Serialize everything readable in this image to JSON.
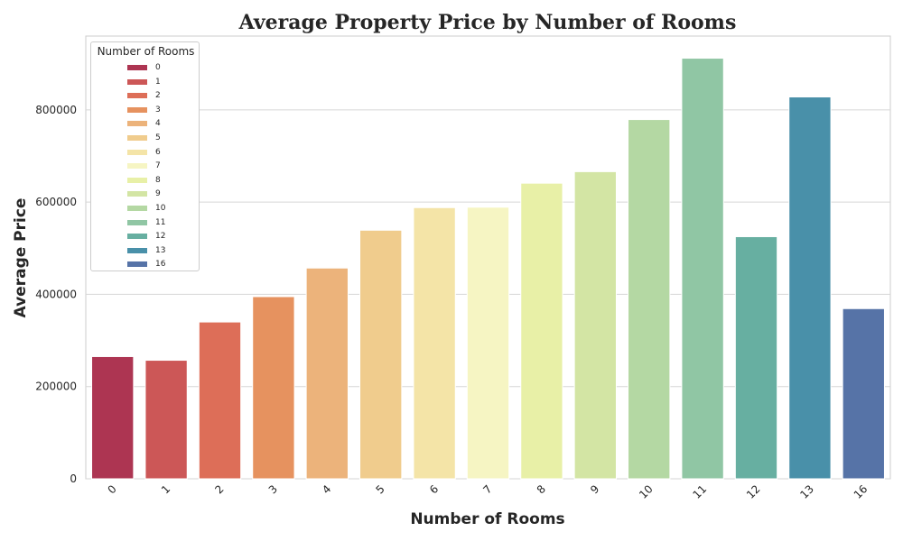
{
  "chart_data": {
    "type": "bar",
    "title": "Average Property Price by Number of Rooms",
    "xlabel": "Number of Rooms",
    "ylabel": "Average Price",
    "categories": [
      "0",
      "1",
      "2",
      "3",
      "4",
      "5",
      "6",
      "7",
      "8",
      "9",
      "10",
      "11",
      "12",
      "13",
      "16"
    ],
    "values": [
      265000,
      257000,
      340000,
      395000,
      457000,
      539000,
      588000,
      589000,
      641000,
      666000,
      779000,
      912000,
      525000,
      828000,
      369000
    ],
    "colors": [
      "#ad3552",
      "#cc5757",
      "#dd6e58",
      "#e6925f",
      "#ecb37b",
      "#f0cc8d",
      "#f4e4a7",
      "#f6f5c3",
      "#e8f0a7",
      "#d3e5a4",
      "#b4d8a3",
      "#90c6a4",
      "#67afa1",
      "#4990a9",
      "#5673a7"
    ],
    "ylim": [
      0,
      960000
    ],
    "yticks": [
      0,
      200000,
      400000,
      600000,
      800000
    ],
    "grid": "horizontal",
    "legend": {
      "title": "Number of Rooms",
      "placement": "upper-left",
      "entries": [
        "0",
        "1",
        "2",
        "3",
        "4",
        "5",
        "6",
        "7",
        "8",
        "9",
        "10",
        "11",
        "12",
        "13",
        "16"
      ]
    }
  }
}
